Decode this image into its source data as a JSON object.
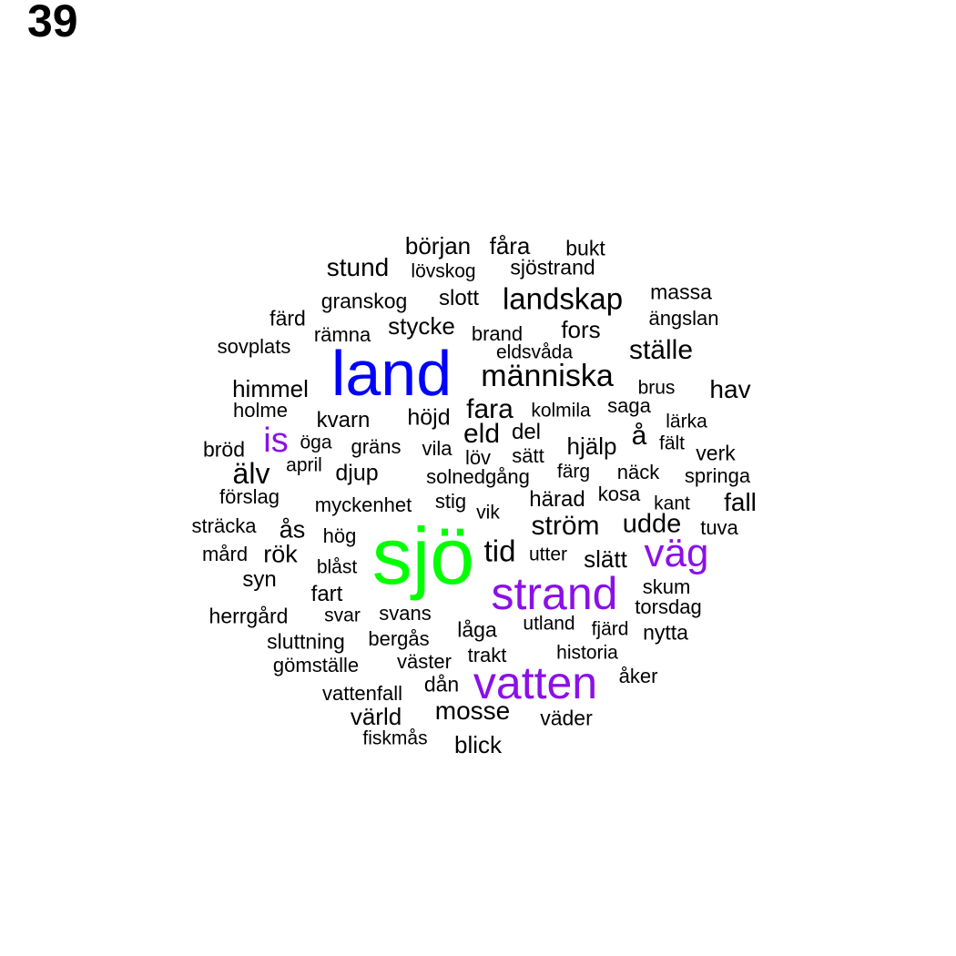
{
  "figure_label": "39",
  "colors": {
    "default": "#000000",
    "green": "#00ff00",
    "blue": "#0000ff",
    "purple": "#8b10e8"
  },
  "words": [
    {
      "text": "sjö",
      "color": "green"
    },
    {
      "text": "land",
      "color": "blue"
    },
    {
      "text": "vatten",
      "color": "purple"
    },
    {
      "text": "strand",
      "color": "purple"
    },
    {
      "text": "väg",
      "color": "purple"
    },
    {
      "text": "is",
      "color": "purple"
    },
    {
      "text": "människa",
      "color": "default"
    },
    {
      "text": "landskap",
      "color": "default"
    },
    {
      "text": "ställe",
      "color": "default"
    },
    {
      "text": "början",
      "color": "default"
    },
    {
      "text": "fåra",
      "color": "default"
    },
    {
      "text": "bukt",
      "color": "default"
    },
    {
      "text": "stund",
      "color": "default"
    },
    {
      "text": "lövskog",
      "color": "default"
    },
    {
      "text": "sjöstrand",
      "color": "default"
    },
    {
      "text": "granskog",
      "color": "default"
    },
    {
      "text": "slott",
      "color": "default"
    },
    {
      "text": "massa",
      "color": "default"
    },
    {
      "text": "färd",
      "color": "default"
    },
    {
      "text": "stycke",
      "color": "default"
    },
    {
      "text": "fors",
      "color": "default"
    },
    {
      "text": "ängslan",
      "color": "default"
    },
    {
      "text": "rämna",
      "color": "default"
    },
    {
      "text": "brand",
      "color": "default"
    },
    {
      "text": "sovplats",
      "color": "default"
    },
    {
      "text": "eldsvåda",
      "color": "default"
    },
    {
      "text": "himmel",
      "color": "default"
    },
    {
      "text": "brus",
      "color": "default"
    },
    {
      "text": "hav",
      "color": "default"
    },
    {
      "text": "holme",
      "color": "default"
    },
    {
      "text": "fara",
      "color": "default"
    },
    {
      "text": "kolmila",
      "color": "default"
    },
    {
      "text": "saga",
      "color": "default"
    },
    {
      "text": "kvarn",
      "color": "default"
    },
    {
      "text": "höjd",
      "color": "default"
    },
    {
      "text": "eld",
      "color": "default"
    },
    {
      "text": "del",
      "color": "default"
    },
    {
      "text": "å",
      "color": "default"
    },
    {
      "text": "lärka",
      "color": "default"
    },
    {
      "text": "öga",
      "color": "default"
    },
    {
      "text": "gräns",
      "color": "default"
    },
    {
      "text": "vila",
      "color": "default"
    },
    {
      "text": "löv",
      "color": "default"
    },
    {
      "text": "sätt",
      "color": "default"
    },
    {
      "text": "hjälp",
      "color": "default"
    },
    {
      "text": "fält",
      "color": "default"
    },
    {
      "text": "bröd",
      "color": "default"
    },
    {
      "text": "verk",
      "color": "default"
    },
    {
      "text": "älv",
      "color": "default"
    },
    {
      "text": "april",
      "color": "default"
    },
    {
      "text": "djup",
      "color": "default"
    },
    {
      "text": "solnedgång",
      "color": "default"
    },
    {
      "text": "färg",
      "color": "default"
    },
    {
      "text": "näck",
      "color": "default"
    },
    {
      "text": "springa",
      "color": "default"
    },
    {
      "text": "förslag",
      "color": "default"
    },
    {
      "text": "myckenhet",
      "color": "default"
    },
    {
      "text": "stig",
      "color": "default"
    },
    {
      "text": "härad",
      "color": "default"
    },
    {
      "text": "kosa",
      "color": "default"
    },
    {
      "text": "kant",
      "color": "default"
    },
    {
      "text": "fall",
      "color": "default"
    },
    {
      "text": "vik",
      "color": "default"
    },
    {
      "text": "sträcka",
      "color": "default"
    },
    {
      "text": "ström",
      "color": "default"
    },
    {
      "text": "udde",
      "color": "default"
    },
    {
      "text": "tuva",
      "color": "default"
    },
    {
      "text": "ås",
      "color": "default"
    },
    {
      "text": "hög",
      "color": "default"
    },
    {
      "text": "mård",
      "color": "default"
    },
    {
      "text": "rök",
      "color": "default"
    },
    {
      "text": "tid",
      "color": "default"
    },
    {
      "text": "utter",
      "color": "default"
    },
    {
      "text": "slätt",
      "color": "default"
    },
    {
      "text": "blåst",
      "color": "default"
    },
    {
      "text": "syn",
      "color": "default"
    },
    {
      "text": "skum",
      "color": "default"
    },
    {
      "text": "fart",
      "color": "default"
    },
    {
      "text": "torsdag",
      "color": "default"
    },
    {
      "text": "herrgård",
      "color": "default"
    },
    {
      "text": "svar",
      "color": "default"
    },
    {
      "text": "svans",
      "color": "default"
    },
    {
      "text": "utland",
      "color": "default"
    },
    {
      "text": "fjärd",
      "color": "default"
    },
    {
      "text": "låga",
      "color": "default"
    },
    {
      "text": "nytta",
      "color": "default"
    },
    {
      "text": "sluttning",
      "color": "default"
    },
    {
      "text": "bergås",
      "color": "default"
    },
    {
      "text": "historia",
      "color": "default"
    },
    {
      "text": "trakt",
      "color": "default"
    },
    {
      "text": "gömställe",
      "color": "default"
    },
    {
      "text": "väster",
      "color": "default"
    },
    {
      "text": "åker",
      "color": "default"
    },
    {
      "text": "dån",
      "color": "default"
    },
    {
      "text": "vattenfall",
      "color": "default"
    },
    {
      "text": "mosse",
      "color": "default"
    },
    {
      "text": "värld",
      "color": "default"
    },
    {
      "text": "väder",
      "color": "default"
    },
    {
      "text": "fiskmås",
      "color": "default"
    },
    {
      "text": "blick",
      "color": "default"
    }
  ]
}
